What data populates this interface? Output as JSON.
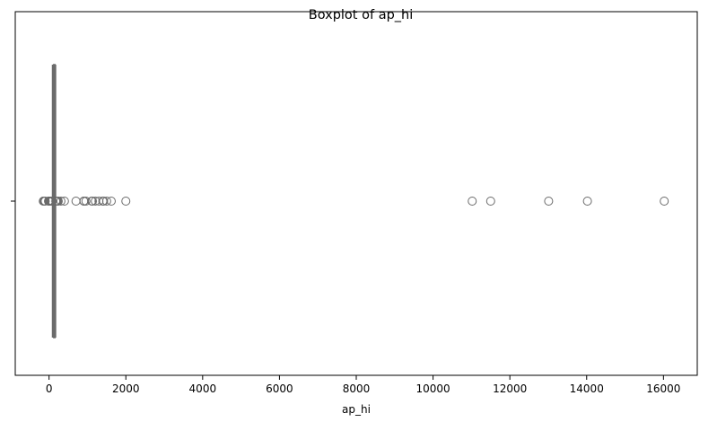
{
  "chart_data": {
    "type": "boxplot",
    "title": "Boxplot of ap_hi",
    "xlabel": "ap_hi",
    "ylabel": "",
    "orientation": "horizontal",
    "xlim": [
      -880,
      16880
    ],
    "xticks": [
      0,
      2000,
      4000,
      6000,
      8000,
      10000,
      12000,
      14000,
      16000
    ],
    "xtick_labels": [
      "0",
      "2000",
      "4000",
      "6000",
      "8000",
      "10000",
      "12000",
      "14000",
      "16000"
    ],
    "grid": false,
    "box": {
      "q1": 120,
      "median": 120,
      "q3": 140,
      "whisker_low": 90,
      "whisker_high": 170
    },
    "outliers": [
      -150,
      -140,
      -120,
      -100,
      -15,
      1,
      7,
      10,
      11,
      12,
      13,
      14,
      15,
      16,
      17,
      20,
      24,
      40,
      60,
      70,
      80,
      85,
      175,
      180,
      190,
      200,
      210,
      220,
      240,
      309,
      401,
      701,
      906,
      907,
      909,
      960,
      1110,
      1130,
      1205,
      1300,
      1400,
      1409,
      1420,
      1500,
      1620,
      2000,
      11020,
      11500,
      13010,
      14020,
      16020
    ],
    "colors": {
      "box_fill": "#ffffff",
      "line": "#6b6b6b",
      "outlier_edge": "#6b6b6b"
    }
  }
}
